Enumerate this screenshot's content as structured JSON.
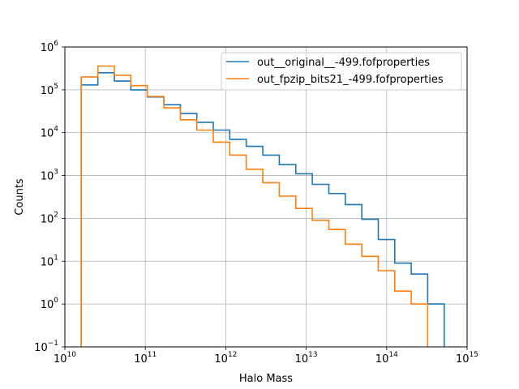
{
  "chart_data": {
    "type": "line",
    "subtype": "step-histogram",
    "title": "",
    "xlabel": "Halo Mass",
    "ylabel": "Counts",
    "xscale": "log",
    "yscale": "log",
    "xlim": [
      10000000000.0,
      1000000000000000.0
    ],
    "ylim": [
      0.1,
      1000000.0
    ],
    "grid": true,
    "legend_position": "top-right",
    "x_ticks": [
      {
        "value": 10000000000.0,
        "base": "10",
        "exp": "10"
      },
      {
        "value": 100000000000.0,
        "base": "10",
        "exp": "11"
      },
      {
        "value": 1000000000000.0,
        "base": "10",
        "exp": "12"
      },
      {
        "value": 10000000000000.0,
        "base": "10",
        "exp": "13"
      },
      {
        "value": 100000000000000.0,
        "base": "10",
        "exp": "14"
      },
      {
        "value": 1000000000000000.0,
        "base": "10",
        "exp": "15"
      }
    ],
    "y_ticks": [
      {
        "value": 0.1,
        "base": "10",
        "exp": "−1"
      },
      {
        "value": 1,
        "base": "10",
        "exp": "0"
      },
      {
        "value": 10,
        "base": "10",
        "exp": "1"
      },
      {
        "value": 100,
        "base": "10",
        "exp": "2"
      },
      {
        "value": 1000,
        "base": "10",
        "exp": "3"
      },
      {
        "value": 10000,
        "base": "10",
        "exp": "4"
      },
      {
        "value": 100000,
        "base": "10",
        "exp": "5"
      },
      {
        "value": 1000000,
        "base": "10",
        "exp": "6"
      }
    ],
    "series": [
      {
        "name": "out__original__-499.fofproperties",
        "color": "#1f77b4",
        "bin_edges": [
          16000000000.0,
          25700000000.0,
          41200000000.0,
          66000000000.0,
          106000000000.0,
          170000000000.0,
          273000000000.0,
          437000000000.0,
          700000000000.0,
          1120000000000.0,
          1800000000000.0,
          2890000000000.0,
          4630000000000.0,
          7430000000000.0,
          11900000000000.0,
          19100000000000.0,
          30600000000000.0,
          49100000000000.0,
          78700000000000.0,
          126000000000000.0,
          202000000000000.0,
          324000000000000.0,
          520000000000000.0
        ],
        "counts": [
          130000,
          250000,
          160000,
          100000,
          68000,
          45000,
          28000,
          17500,
          11500,
          7000,
          4800,
          3000,
          1800,
          1100,
          620,
          380,
          210,
          95,
          32,
          9,
          5,
          1
        ]
      },
      {
        "name": "out_fpzip_bits21_-499.fofproperties",
        "color": "#ff7f0e",
        "bin_edges": [
          16000000000.0,
          25700000000.0,
          41200000000.0,
          66000000000.0,
          106000000000.0,
          170000000000.0,
          273000000000.0,
          437000000000.0,
          700000000000.0,
          1120000000000.0,
          1800000000000.0,
          2890000000000.0,
          4630000000000.0,
          7430000000000.0,
          11900000000000.0,
          19100000000000.0,
          30600000000000.0,
          49100000000000.0,
          78700000000000.0,
          126000000000000.0,
          202000000000000.0,
          324000000000000.0
        ],
        "counts": [
          200000,
          360000,
          220000,
          125000,
          70000,
          38000,
          20000,
          11500,
          6000,
          3000,
          1400,
          680,
          330,
          170,
          90,
          55,
          25,
          13,
          6,
          2,
          1
        ]
      }
    ]
  }
}
